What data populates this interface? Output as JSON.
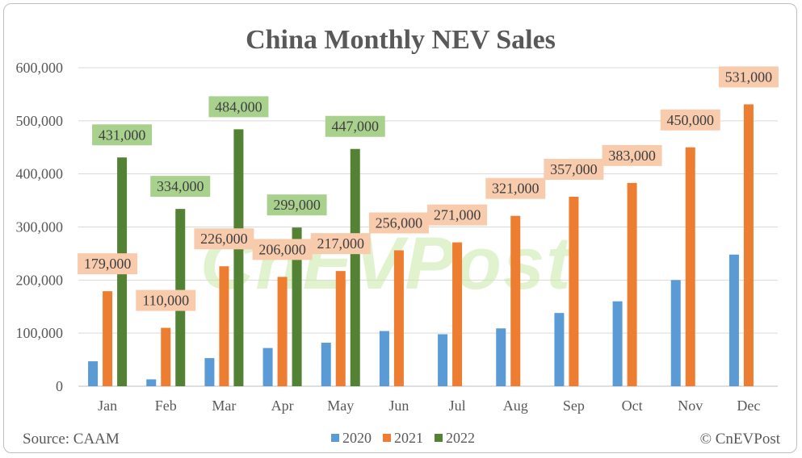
{
  "chart_data": {
    "type": "bar",
    "title": "China Monthly NEV Sales",
    "categories": [
      "Jan",
      "Feb",
      "Mar",
      "Apr",
      "May",
      "Jun",
      "Jul",
      "Aug",
      "Sep",
      "Oct",
      "Nov",
      "Dec"
    ],
    "ylim": [
      0,
      600000
    ],
    "yticks": [
      "0",
      "100,000",
      "200,000",
      "300,000",
      "400,000",
      "500,000",
      "600,000"
    ],
    "ytick_values": [
      0,
      100000,
      200000,
      300000,
      400000,
      500000,
      600000
    ],
    "grid": true,
    "legend_position": "bottom",
    "series": [
      {
        "name": "2020",
        "color": "#5b9bd5",
        "values": [
          47000,
          13000,
          53000,
          72000,
          82000,
          104000,
          98000,
          109000,
          138000,
          160000,
          200000,
          248000
        ],
        "labels": []
      },
      {
        "name": "2021",
        "color": "#ed7d31",
        "label_bg": "#f8cbad",
        "values": [
          179000,
          110000,
          226000,
          206000,
          217000,
          256000,
          271000,
          321000,
          357000,
          383000,
          450000,
          531000
        ],
        "labels": [
          "179,000",
          "110,000",
          "226,000",
          "206,000",
          "217,000",
          "256,000",
          "271,000",
          "321,000",
          "357,000",
          "383,000",
          "450,000",
          "531,000"
        ]
      },
      {
        "name": "2022",
        "color": "#548235",
        "label_bg": "#a9d18e",
        "values": [
          431000,
          334000,
          484000,
          299000,
          447000,
          null,
          null,
          null,
          null,
          null,
          null,
          null
        ],
        "labels": [
          "431,000",
          "334,000",
          "484,000",
          "299,000",
          "447,000"
        ]
      }
    ]
  },
  "watermark": "CnEVPost",
  "footer": {
    "source": "Source: CAAM",
    "copyright": "© CnEVPost"
  }
}
